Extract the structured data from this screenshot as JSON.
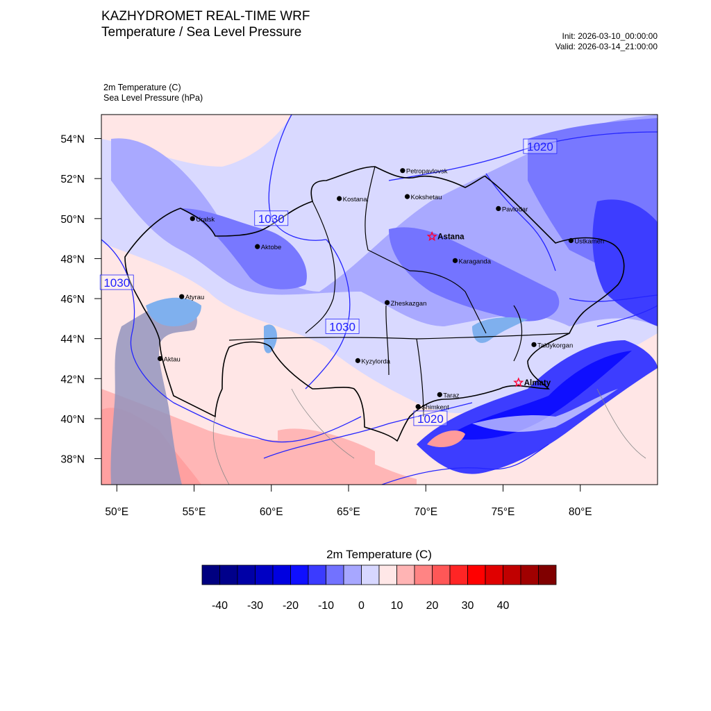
{
  "header": {
    "title_line1": "KAZHYDROMET REAL-TIME WRF",
    "title_line2": "Temperature / Sea Level Pressure",
    "init": "Init: 2026-03-10_00:00:00",
    "valid": "Valid: 2026-03-14_21:00:00"
  },
  "fields": {
    "field1": "2m Temperature   (C)",
    "field2": "Sea Level Pressure   (hPa)"
  },
  "map": {
    "lon_range": [
      49,
      85
    ],
    "lat_range": [
      36.7,
      55.2
    ],
    "lat_ticks": [
      "54°N",
      "52°N",
      "50°N",
      "48°N",
      "46°N",
      "44°N",
      "42°N",
      "40°N",
      "38°N"
    ],
    "lon_ticks": [
      "50°E",
      "55°E",
      "60°E",
      "65°E",
      "70°E",
      "75°E",
      "80°E"
    ],
    "cities": [
      {
        "name": "Petropavlovsk",
        "lon": 68.5,
        "lat": 52.4,
        "capital": false
      },
      {
        "name": "Kostanai",
        "lon": 64.4,
        "lat": 51.0,
        "capital": false
      },
      {
        "name": "Kokshetau",
        "lon": 68.8,
        "lat": 51.1,
        "capital": false
      },
      {
        "name": "Pavlodar",
        "lon": 74.7,
        "lat": 50.5,
        "capital": false
      },
      {
        "name": "Uralsk",
        "lon": 54.9,
        "lat": 50.0,
        "capital": false
      },
      {
        "name": "Astana",
        "lon": 70.4,
        "lat": 49.1,
        "capital": true
      },
      {
        "name": "Aktobe",
        "lon": 59.1,
        "lat": 48.6,
        "capital": false
      },
      {
        "name": "Ustkamen",
        "lon": 79.4,
        "lat": 48.9,
        "capital": false
      },
      {
        "name": "Karaganda",
        "lon": 71.9,
        "lat": 47.9,
        "capital": false
      },
      {
        "name": "Atyrau",
        "lon": 54.2,
        "lat": 46.1,
        "capital": false
      },
      {
        "name": "Zheskazgan",
        "lon": 67.5,
        "lat": 45.8,
        "capital": false
      },
      {
        "name": "Taldykorgan",
        "lon": 77.0,
        "lat": 43.7,
        "capital": false
      },
      {
        "name": "Aktau",
        "lon": 52.8,
        "lat": 43.0,
        "capital": false
      },
      {
        "name": "Kyzylorda",
        "lon": 65.6,
        "lat": 42.9,
        "capital": false
      },
      {
        "name": "Almaty",
        "lon": 76.0,
        "lat": 41.8,
        "capital": true
      },
      {
        "name": "Taraz",
        "lon": 70.9,
        "lat": 41.2,
        "capital": false
      },
      {
        "name": "Shimkent",
        "lon": 69.5,
        "lat": 40.6,
        "capital": false
      }
    ],
    "isobar_labels": [
      {
        "text": "1020",
        "lon": 77.4,
        "lat": 53.6
      },
      {
        "text": "1030",
        "lon": 60.0,
        "lat": 50.0
      },
      {
        "text": "1030",
        "lon": 50.0,
        "lat": 46.8
      },
      {
        "text": "1030",
        "lon": 64.6,
        "lat": 44.6
      },
      {
        "text": "1020",
        "lon": 70.3,
        "lat": 40.0
      }
    ]
  },
  "colorbar": {
    "title": "2m Temperature  (C)",
    "levels": [
      -45,
      -40,
      -35,
      -30,
      -25,
      -20,
      -15,
      -10,
      -5,
      0,
      5,
      10,
      15,
      20,
      25,
      30,
      35,
      40,
      45,
      50
    ],
    "colors": [
      "#000080",
      "#00008b",
      "#0000a6",
      "#0000c4",
      "#0000e0",
      "#0f0fff",
      "#3b3bff",
      "#7272ff",
      "#a7a7ff",
      "#d7d7ff",
      "#ffe7e7",
      "#ffb4b4",
      "#ff8484",
      "#ff5757",
      "#ff2525",
      "#ff0000",
      "#e00000",
      "#c00000",
      "#a00000",
      "#800000"
    ],
    "labels": [
      "-40",
      "-30",
      "-20",
      "-10",
      "0",
      "10",
      "20",
      "30",
      "40"
    ]
  }
}
